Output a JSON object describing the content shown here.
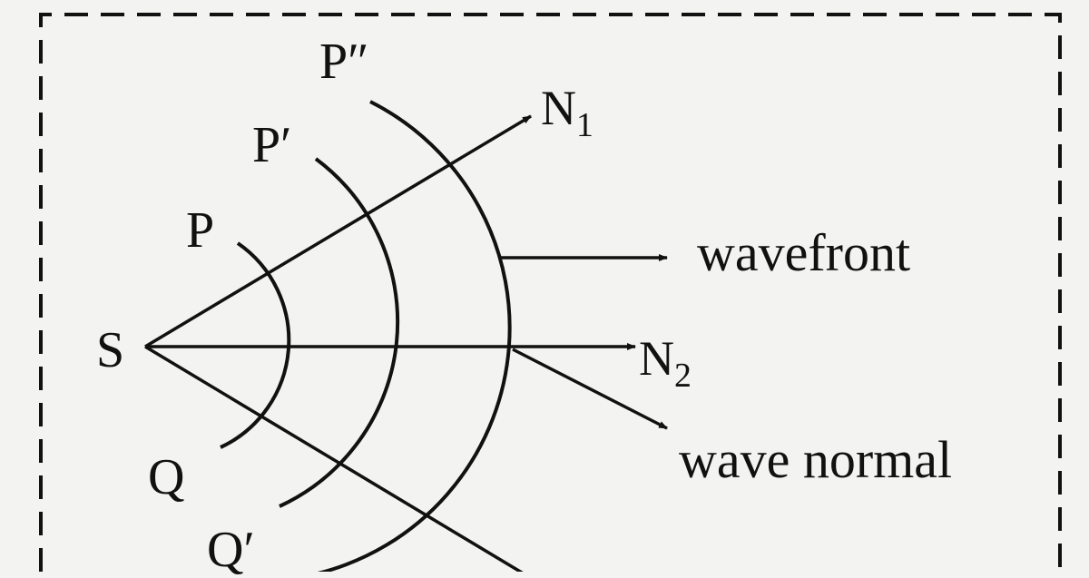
{
  "diagram": {
    "labels": {
      "p_double_prime": "P″",
      "p_prime": "P′",
      "p": "P",
      "s": "S",
      "q": "Q",
      "q_prime": "Q′",
      "n1": "N",
      "n1_sub": "1",
      "n2": "N",
      "n2_sub": "2",
      "wavefront": "wavefront",
      "wave_normal": "wave normal"
    },
    "colors": {
      "ink": "#111111",
      "paper": "#f3f3f1"
    }
  }
}
